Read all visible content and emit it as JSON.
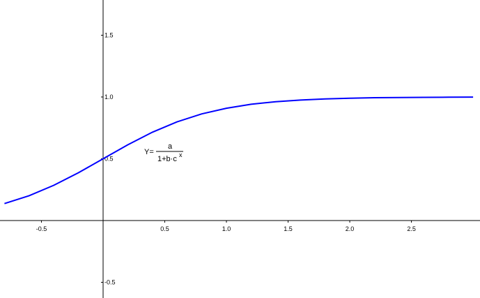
{
  "chart_data": {
    "type": "line",
    "x": [
      -0.8,
      -0.6,
      -0.4,
      -0.2,
      0,
      0.2,
      0.4,
      0.6,
      0.8,
      1.0,
      1.2,
      1.4,
      1.6,
      1.8,
      2.0,
      2.2,
      2.4,
      2.6,
      2.8,
      3.0
    ],
    "values": [
      0.137,
      0.201,
      0.285,
      0.387,
      0.5,
      0.613,
      0.715,
      0.799,
      0.863,
      0.909,
      0.941,
      0.962,
      0.975,
      0.984,
      0.99,
      0.994,
      0.996,
      0.997,
      0.998,
      0.999
    ],
    "color": "#0000ff",
    "xlim": [
      -0.836,
      3.056
    ],
    "ylim": [
      -0.627,
      1.785
    ],
    "xticks": [
      -0.5,
      0.5,
      {
        "value": 1,
        "label": "1.0"
      },
      1.5,
      {
        "value": 2,
        "label": "2.0"
      },
      2.5
    ],
    "yticks": [
      -0.5,
      0.5,
      {
        "value": 1,
        "label": "1.0"
      },
      1.5
    ],
    "grid": false,
    "annotation": {
      "lhs": "Y=",
      "numerator": "a",
      "denominator": "1+b·c",
      "exponent": "x"
    }
  }
}
